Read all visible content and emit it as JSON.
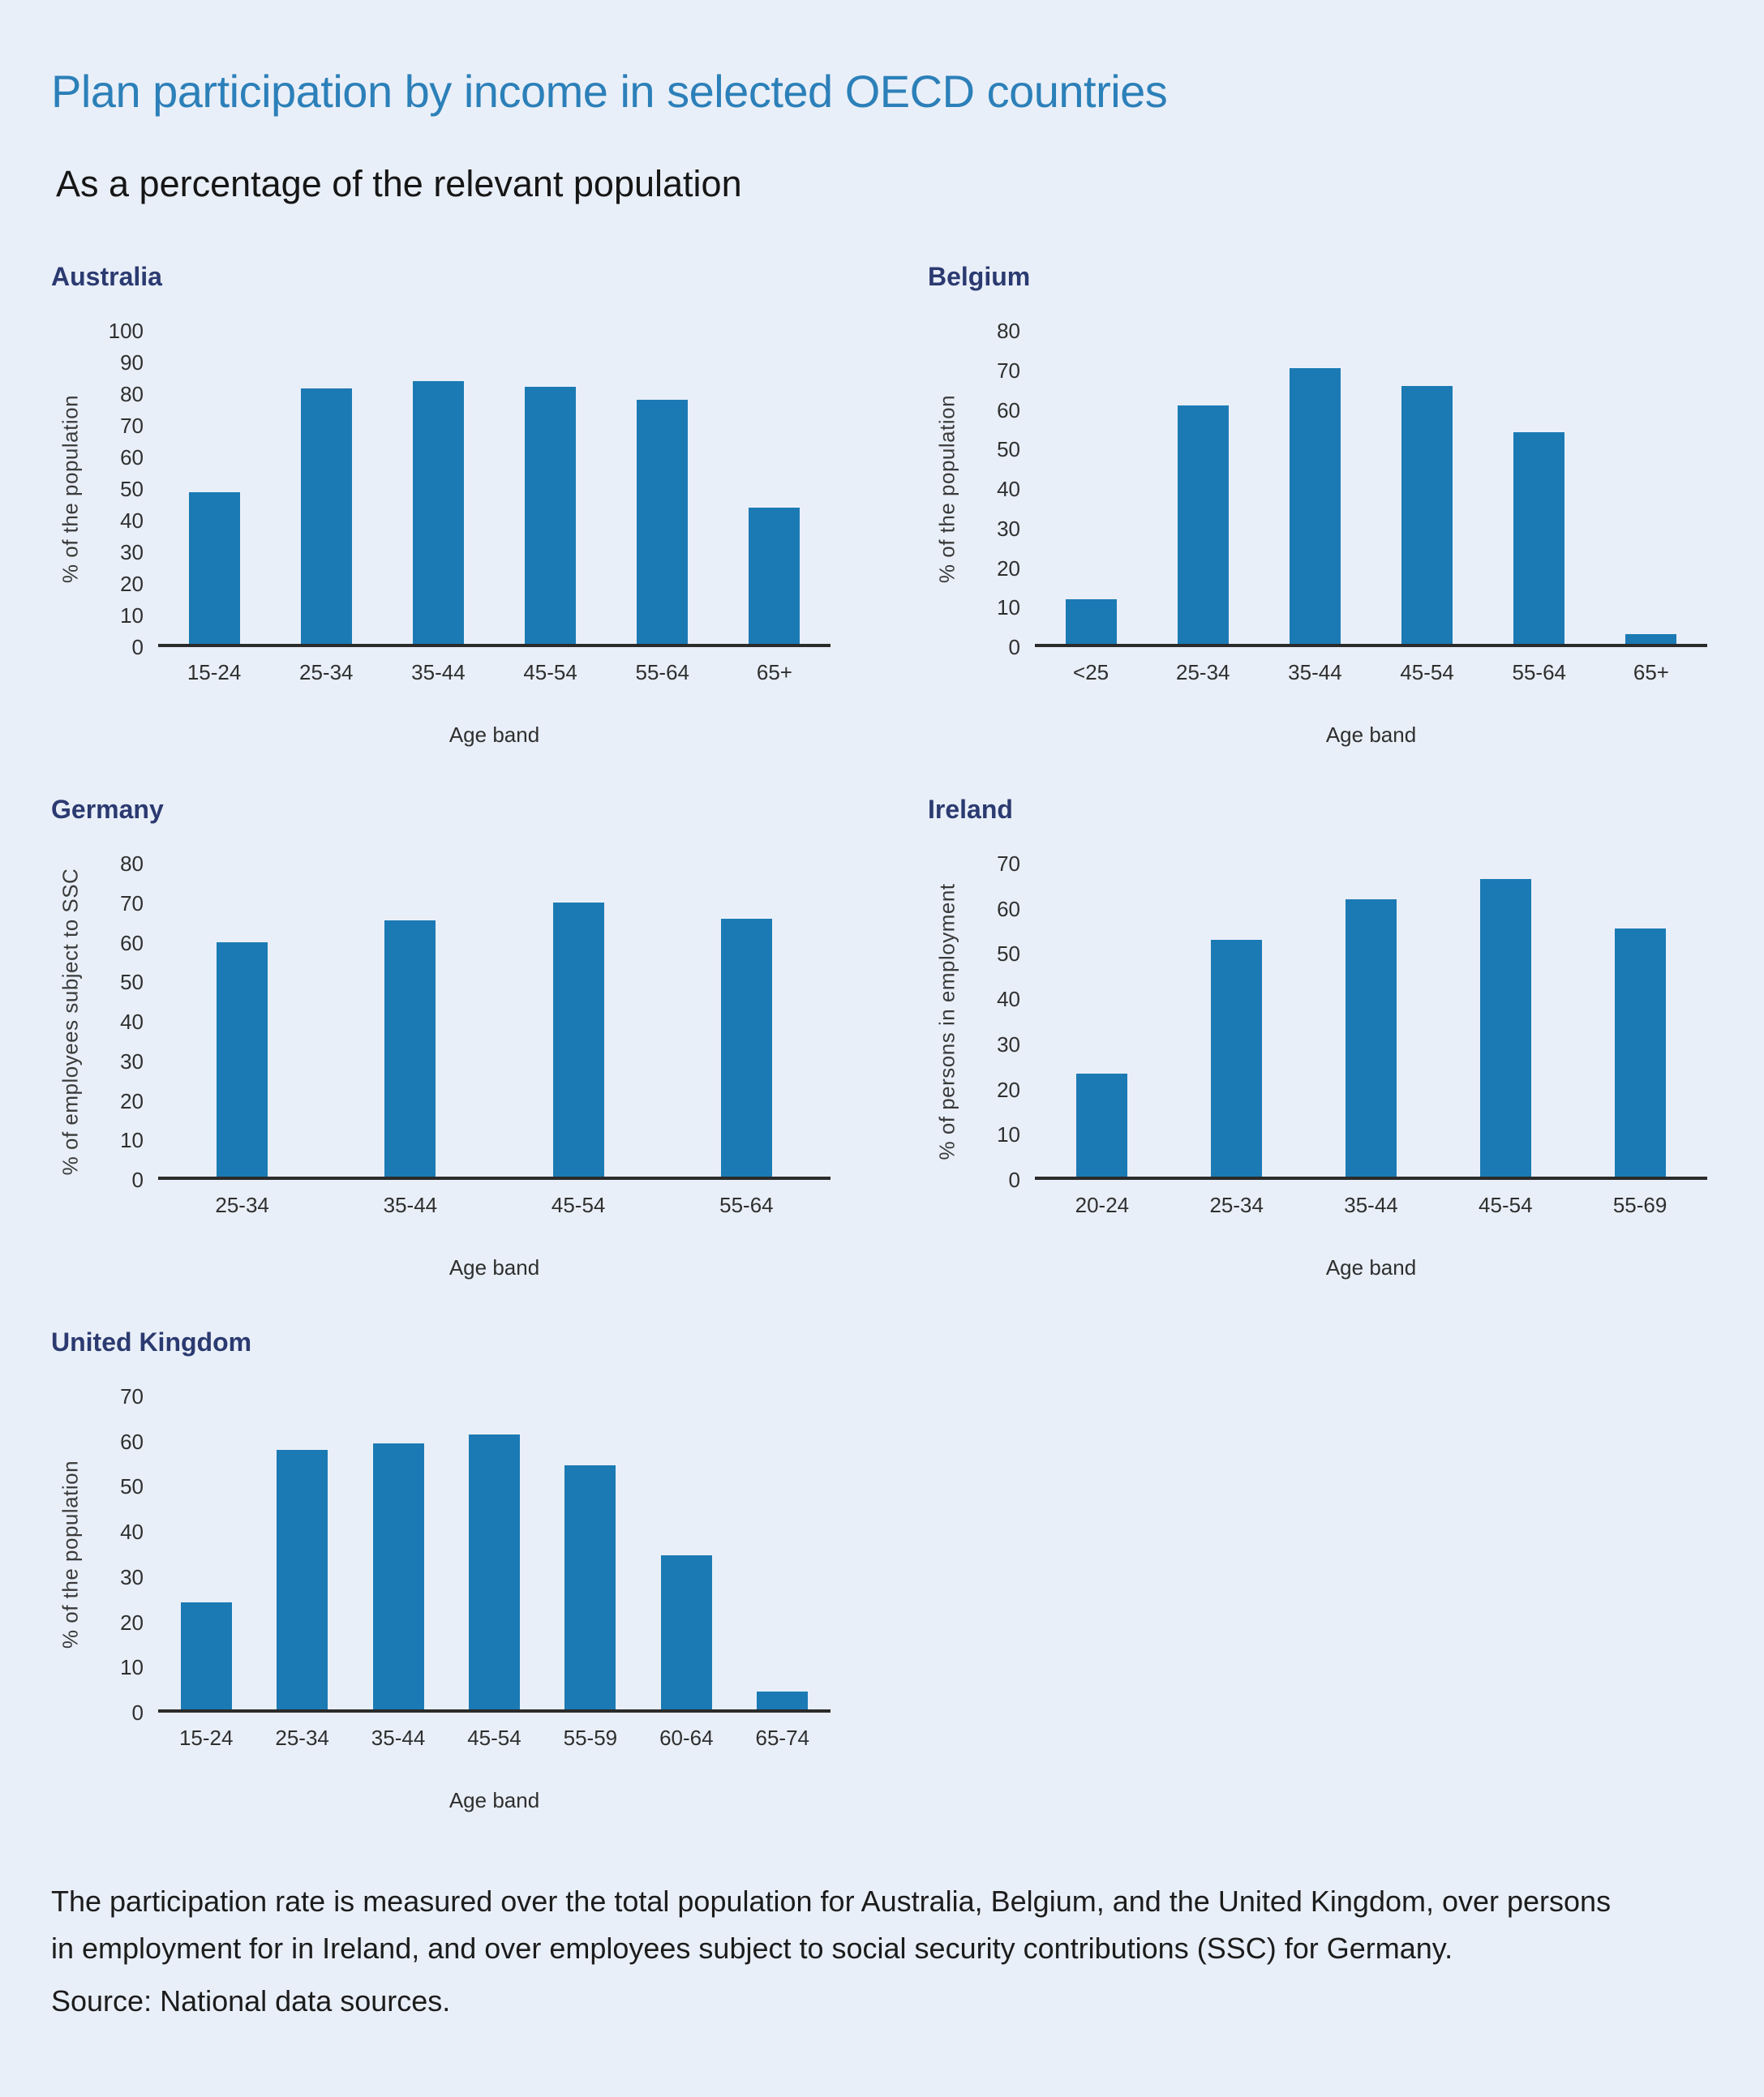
{
  "header": {
    "title": "Plan participation by income in selected OECD countries",
    "subtitle": "As a percentage of the relevant population"
  },
  "colors": {
    "background": "#e9eff8",
    "bar": "#1b7ab4",
    "axis_line": "#2b2b2b",
    "page_title": "#2c80b9",
    "country_title": "#2b3a70",
    "tick_text": "#2f2f2f"
  },
  "chart_data": [
    {
      "type": "bar",
      "title": "Australia",
      "categories": [
        "15-24",
        "25-34",
        "35-44",
        "45-54",
        "55-64",
        "65+"
      ],
      "values": [
        48.5,
        81.5,
        84,
        82,
        78,
        43.5
      ],
      "xlabel": "Age band",
      "ylabel": "% of the population",
      "ylim": [
        0,
        100
      ],
      "yticks": [
        0,
        10,
        20,
        30,
        40,
        50,
        60,
        70,
        80,
        90,
        100
      ],
      "grid": false,
      "legend": "none"
    },
    {
      "type": "bar",
      "title": "Belgium",
      "categories": [
        "<25",
        "25-34",
        "35-44",
        "45-54",
        "55-64",
        "65+"
      ],
      "values": [
        11.5,
        61,
        70.5,
        66,
        54,
        2.5
      ],
      "xlabel": "Age band",
      "ylabel": "% of the population",
      "ylim": [
        0,
        80
      ],
      "yticks": [
        0,
        10,
        20,
        30,
        40,
        50,
        60,
        70,
        80
      ],
      "grid": false,
      "legend": "none"
    },
    {
      "type": "bar",
      "title": "Germany",
      "categories": [
        "25-34",
        "35-44",
        "45-54",
        "55-64"
      ],
      "values": [
        60,
        65.5,
        70,
        66
      ],
      "xlabel": "Age band",
      "ylabel": "% of employees subject to SSC",
      "ylim": [
        0,
        80
      ],
      "yticks": [
        0,
        10,
        20,
        30,
        40,
        50,
        60,
        70,
        80
      ],
      "grid": false,
      "legend": "none"
    },
    {
      "type": "bar",
      "title": "Ireland",
      "categories": [
        "20-24",
        "25-34",
        "35-44",
        "45-54",
        "55-69"
      ],
      "values": [
        23,
        53,
        62,
        66.5,
        55.5
      ],
      "xlabel": "Age band",
      "ylabel": "% of persons in employment",
      "ylim": [
        0,
        70
      ],
      "yticks": [
        0,
        10,
        20,
        30,
        40,
        50,
        60,
        70
      ],
      "grid": false,
      "legend": "none"
    },
    {
      "type": "bar",
      "title": "United Kingdom",
      "categories": [
        "15-24",
        "25-34",
        "35-44",
        "45-54",
        "55-59",
        "60-64",
        "65-74"
      ],
      "values": [
        24,
        58,
        59.5,
        61.5,
        54.5,
        34.5,
        4
      ],
      "xlabel": "Age band",
      "ylabel": "% of the population",
      "ylim": [
        0,
        70
      ],
      "yticks": [
        0,
        10,
        20,
        30,
        40,
        50,
        60,
        70
      ],
      "grid": false,
      "legend": "none"
    }
  ],
  "footer": {
    "note": "The participation rate is measured over the total population for Australia, Belgium, and the United Kingdom, over persons in employment for in Ireland, and over employees subject to social security contributions (SSC) for Germany.",
    "source": "Source: National data sources."
  }
}
